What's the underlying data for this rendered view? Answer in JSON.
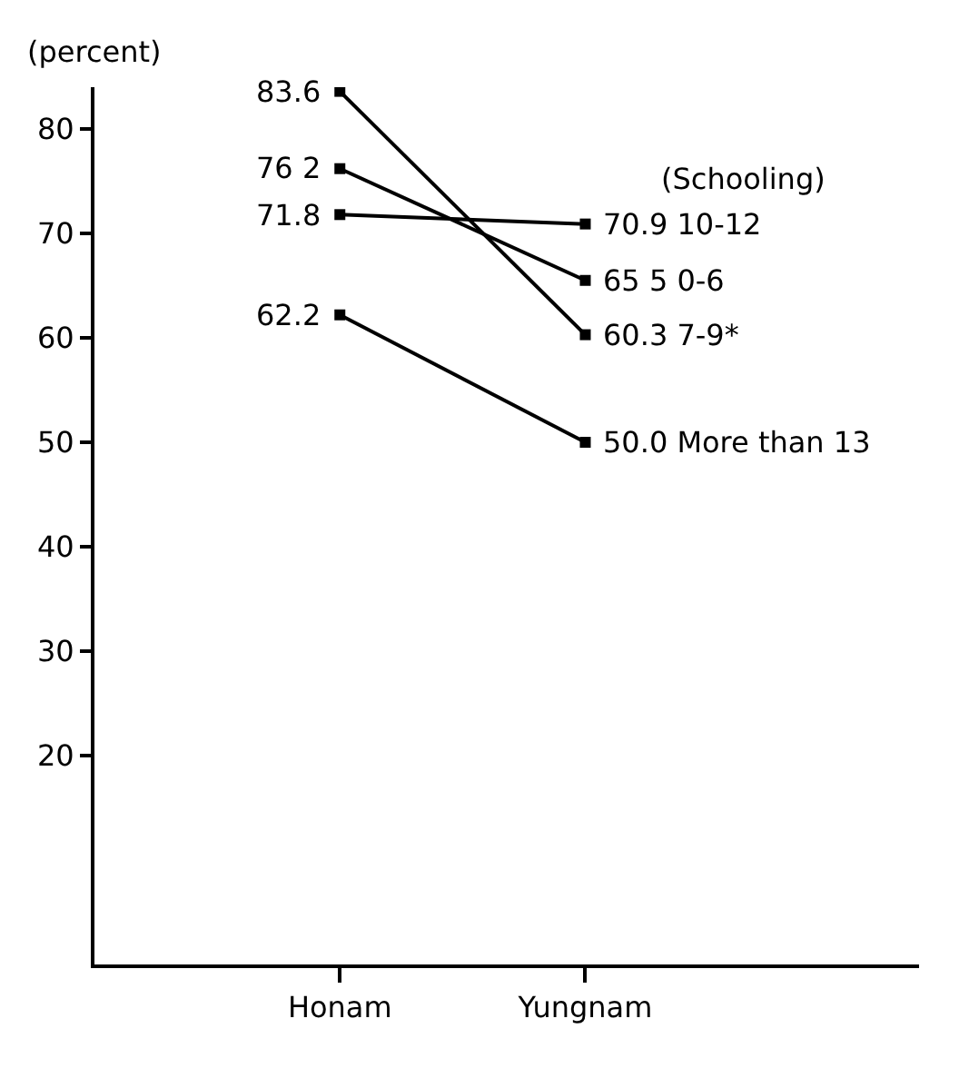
{
  "chart_data": {
    "type": "line",
    "ylabel": "(percent)",
    "legend_title": "(Schooling)",
    "categories": [
      "Honam",
      "Yungnam"
    ],
    "series": [
      {
        "name": "10-12",
        "color": "#000000",
        "values": [
          71.8,
          70.9
        ],
        "value_labels": [
          "71.8",
          "70.9"
        ]
      },
      {
        "name": "0-6",
        "color": "#000000",
        "values": [
          76.2,
          65.5
        ],
        "value_labels": [
          "76 2",
          "65 5"
        ]
      },
      {
        "name": "7-9*",
        "color": "#000000",
        "values": [
          83.6,
          60.3
        ],
        "value_labels": [
          "83.6",
          "60.3"
        ]
      },
      {
        "name": "More than 13",
        "color": "#000000",
        "values": [
          62.2,
          50.0
        ],
        "value_labels": [
          "62.2",
          "50.0"
        ]
      }
    ],
    "ylim": [
      0,
      84
    ],
    "yticks": [
      20,
      30,
      40,
      50,
      60,
      70,
      80
    ],
    "grid": false,
    "legend": false,
    "marker": "square",
    "line_style": "solid"
  }
}
